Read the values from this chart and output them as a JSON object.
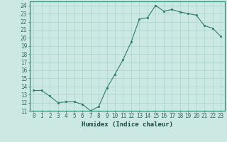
{
  "x": [
    0,
    1,
    2,
    3,
    4,
    5,
    6,
    7,
    8,
    9,
    10,
    11,
    12,
    13,
    14,
    15,
    16,
    17,
    18,
    19,
    20,
    21,
    22,
    23
  ],
  "y": [
    13.5,
    13.5,
    12.8,
    12.0,
    12.1,
    12.1,
    11.8,
    11.0,
    11.5,
    13.8,
    15.5,
    17.3,
    19.5,
    22.3,
    22.5,
    24.0,
    23.3,
    23.5,
    23.2,
    23.0,
    22.8,
    21.5,
    21.2,
    20.2
  ],
  "xlabel": "Humidex (Indice chaleur)",
  "ylim": [
    11,
    24.5
  ],
  "xlim": [
    -0.5,
    23.5
  ],
  "yticks": [
    11,
    12,
    13,
    14,
    15,
    16,
    17,
    18,
    19,
    20,
    21,
    22,
    23,
    24
  ],
  "xticks": [
    0,
    1,
    2,
    3,
    4,
    5,
    6,
    7,
    8,
    9,
    10,
    11,
    12,
    13,
    14,
    15,
    16,
    17,
    18,
    19,
    20,
    21,
    22,
    23
  ],
  "line_color": "#2e7d6e",
  "marker_color": "#2e7d6e",
  "bg_color": "#cce8e2",
  "grid_color": "#a8d4cc",
  "tick_label_color": "#2e6b60",
  "xlabel_color": "#1a4a44",
  "font_size": 5.5,
  "xlabel_fontsize": 6.5
}
